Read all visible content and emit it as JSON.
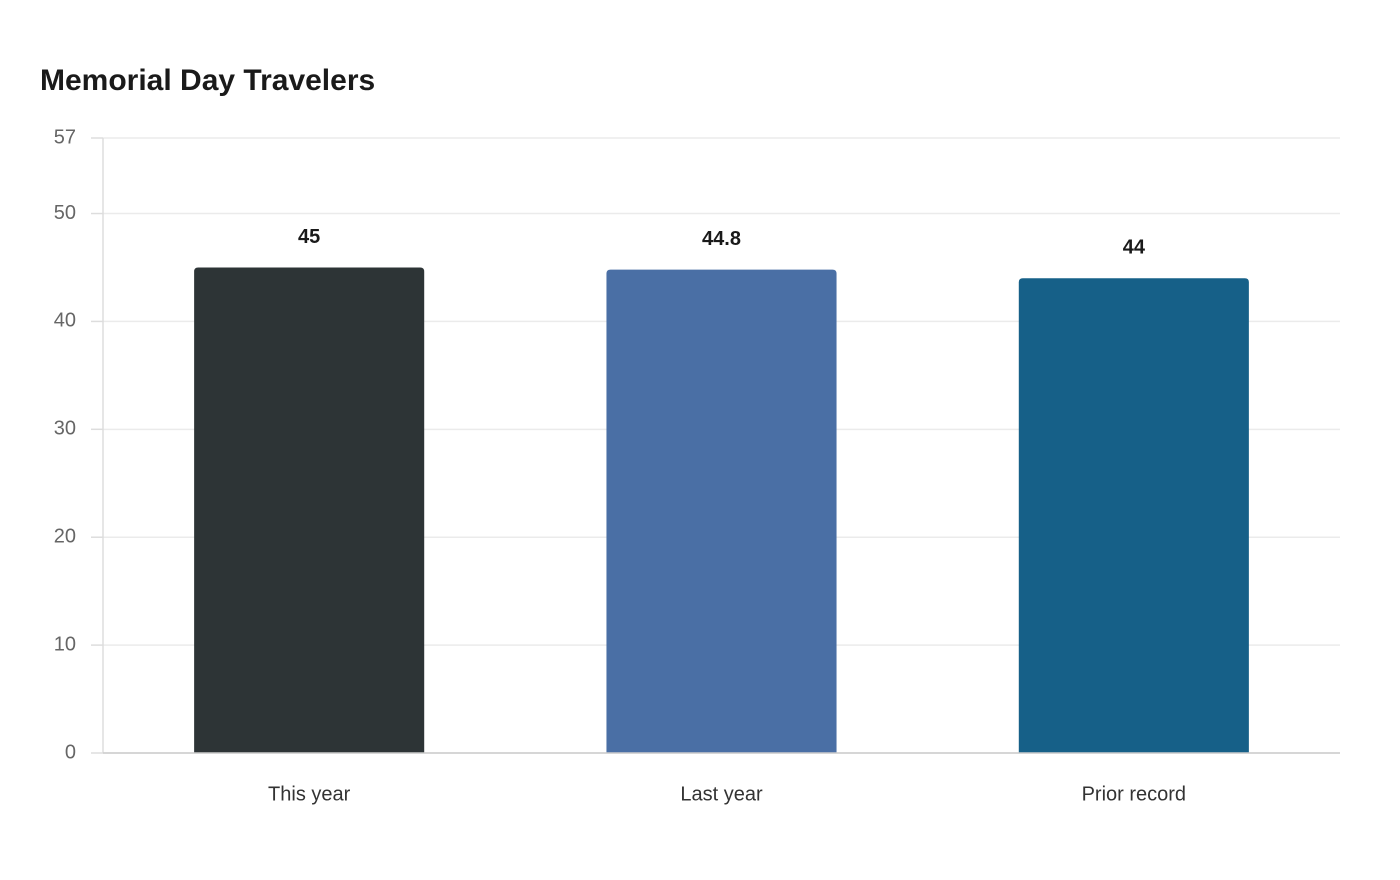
{
  "chart_data": {
    "type": "bar",
    "title": "Memorial Day Travelers",
    "categories": [
      "This year",
      "Last year",
      "Prior record"
    ],
    "values": [
      45,
      44.8,
      44
    ],
    "colors": [
      "#2d3436",
      "#4a6fa5",
      "#166088"
    ],
    "ylim": [
      0,
      57
    ],
    "yticks": [
      0,
      10,
      20,
      30,
      40,
      50,
      57
    ],
    "grid": true
  }
}
